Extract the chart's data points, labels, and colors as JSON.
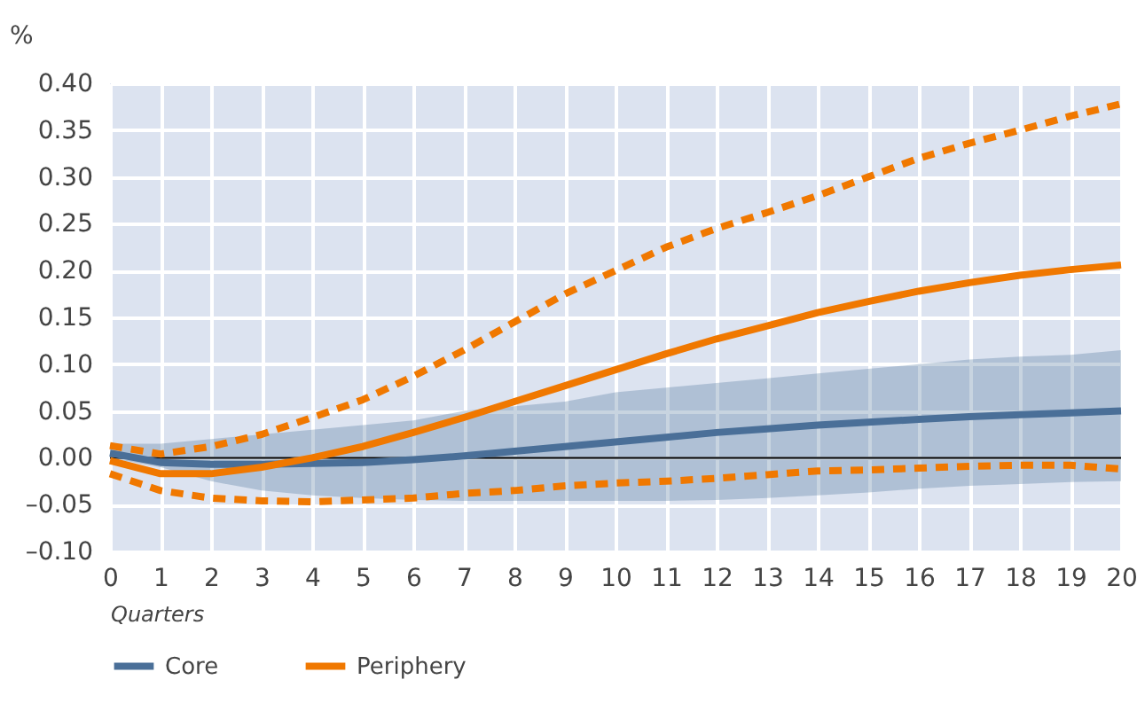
{
  "chart_data": {
    "type": "line",
    "xlabel": "Quarters",
    "ylabel": "%",
    "x": [
      0,
      1,
      2,
      3,
      4,
      5,
      6,
      7,
      8,
      9,
      10,
      11,
      12,
      13,
      14,
      15,
      16,
      17,
      18,
      19,
      20
    ],
    "series": [
      {
        "name": "Core",
        "color": "#4a6f98",
        "values": [
          0.005,
          -0.005,
          -0.007,
          -0.007,
          -0.006,
          -0.005,
          -0.002,
          0.002,
          0.007,
          0.012,
          0.017,
          0.022,
          0.027,
          0.031,
          0.035,
          0.038,
          0.041,
          0.044,
          0.046,
          0.048,
          0.05
        ],
        "lower": [
          0.0,
          -0.01,
          -0.025,
          -0.035,
          -0.04,
          -0.043,
          -0.045,
          -0.046,
          -0.046,
          -0.046,
          -0.046,
          -0.046,
          -0.045,
          -0.043,
          -0.04,
          -0.037,
          -0.033,
          -0.03,
          -0.028,
          -0.026,
          -0.025
        ],
        "upper": [
          0.015,
          0.015,
          0.02,
          0.025,
          0.03,
          0.035,
          0.04,
          0.05,
          0.055,
          0.06,
          0.07,
          0.075,
          0.08,
          0.085,
          0.09,
          0.095,
          0.1,
          0.105,
          0.108,
          0.11,
          0.115
        ]
      },
      {
        "name": "Periphery",
        "color": "#f07800",
        "values": [
          -0.003,
          -0.017,
          -0.017,
          -0.01,
          0.0,
          0.012,
          0.027,
          0.043,
          0.06,
          0.077,
          0.094,
          0.111,
          0.127,
          0.141,
          0.155,
          0.167,
          0.178,
          0.187,
          0.195,
          0.201,
          0.206
        ]
      },
      {
        "color": "#f07800",
        "line_style": "dashed",
        "values": [
          0.013,
          0.004,
          0.012,
          0.025,
          0.043,
          0.062,
          0.087,
          0.115,
          0.145,
          0.175,
          0.2,
          0.225,
          0.245,
          0.262,
          0.28,
          0.3,
          0.32,
          0.336,
          0.35,
          0.365,
          0.378
        ]
      },
      {
        "color": "#f07800",
        "line_style": "dashed",
        "values": [
          -0.017,
          -0.035,
          -0.043,
          -0.046,
          -0.047,
          -0.045,
          -0.043,
          -0.038,
          -0.035,
          -0.03,
          -0.027,
          -0.025,
          -0.022,
          -0.018,
          -0.014,
          -0.013,
          -0.011,
          -0.009,
          -0.008,
          -0.008,
          -0.012
        ]
      }
    ],
    "xlim": [
      0,
      20
    ],
    "xticks": [
      0,
      1,
      2,
      3,
      4,
      5,
      6,
      7,
      8,
      9,
      10,
      11,
      12,
      13,
      14,
      15,
      16,
      17,
      18,
      19,
      20
    ],
    "ylim": [
      -0.1,
      0.4
    ],
    "yticks": [
      {
        "value": -0.1,
        "label": "–0.10"
      },
      {
        "value": -0.05,
        "label": "–0.05"
      },
      {
        "value": 0,
        "label": "0.00"
      },
      {
        "value": 0.05,
        "label": "0.05"
      },
      {
        "value": 0.1,
        "label": "0.10"
      },
      {
        "value": 0.15,
        "label": "0.15"
      },
      {
        "value": 0.2,
        "label": "0.20"
      },
      {
        "value": 0.25,
        "label": "0.25"
      },
      {
        "value": 0.3,
        "label": "0.30"
      },
      {
        "value": 0.35,
        "label": "0.35"
      },
      {
        "value": 0.4,
        "label": "0.40"
      }
    ],
    "ref_lines": [
      {
        "axis": "y",
        "value": 0,
        "color": "#000000"
      }
    ],
    "grid": true,
    "legend": "bottom",
    "marker": "none",
    "line_style": "solid"
  }
}
